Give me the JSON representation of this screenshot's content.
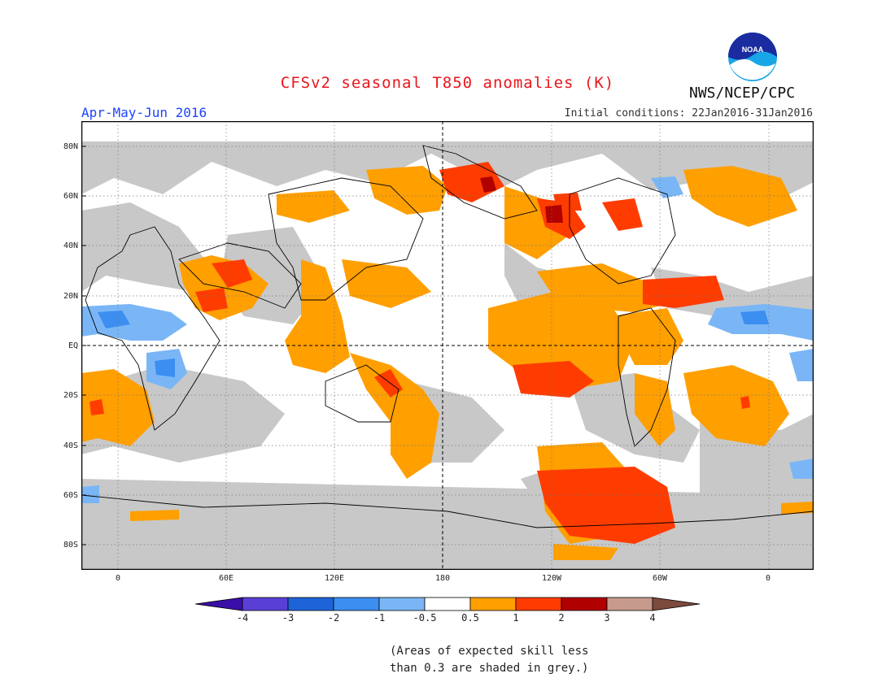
{
  "header": {
    "title": "CFSv2 seasonal T850 anomalies (K)",
    "season": "Apr-May-Jun 2016",
    "initial_conditions": "Initial conditions: 22Jan2016-31Jan2016",
    "org": "NWS/NCEP/CPC",
    "logo_text": "NOAA"
  },
  "map": {
    "lat_labels": [
      "80N",
      "60N",
      "40N",
      "20N",
      "EQ",
      "20S",
      "40S",
      "60S",
      "80S"
    ],
    "lon_labels": [
      "0",
      "60E",
      "120E",
      "180",
      "120W",
      "60W",
      "0"
    ]
  },
  "legend": {
    "labels": [
      "-4",
      "-3",
      "-2",
      "-1",
      "-0.5",
      "0.5",
      "1",
      "2",
      "3",
      "4"
    ],
    "colors": [
      "#3a0fa8",
      "#5a3fd6",
      "#1e64d8",
      "#3c8ef0",
      "#7ab6f6",
      "#ffffff",
      "#ff9f00",
      "#ff3c00",
      "#b00000",
      "#c79a8e",
      "#7d4a3d"
    ]
  },
  "note": {
    "line1": "(Areas of expected skill less",
    "line2": "than 0.3 are shaded in grey.)"
  }
}
